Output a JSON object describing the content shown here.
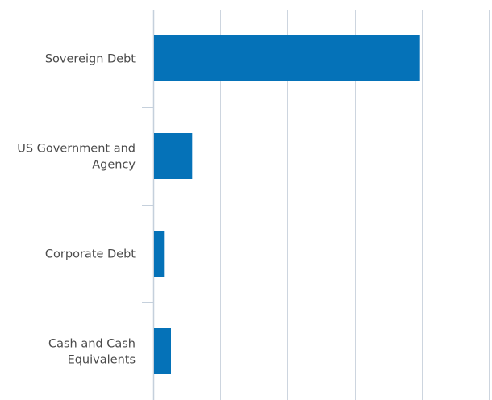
{
  "chart_data": {
    "type": "bar",
    "orientation": "horizontal",
    "title": "",
    "xlabel": "",
    "ylabel": "",
    "categories": [
      [
        "Sovereign Debt"
      ],
      [
        "US Government and",
        "Agency"
      ],
      [
        "Corporate Debt"
      ],
      [
        "Cash and Cash",
        "Equivalents"
      ]
    ],
    "values": [
      79.5,
      11.6,
      3.2,
      5.3
    ],
    "xlim": [
      0,
      100
    ],
    "x_gridlines": [
      0,
      20,
      40,
      60,
      80,
      100
    ],
    "grid": true,
    "tick_labels_visible": false,
    "legend": "none",
    "colors": {
      "bar": "#0572B8",
      "grid": "#cdd5df",
      "axis": "#c5d0dc",
      "label": "#4a4a4a"
    }
  }
}
